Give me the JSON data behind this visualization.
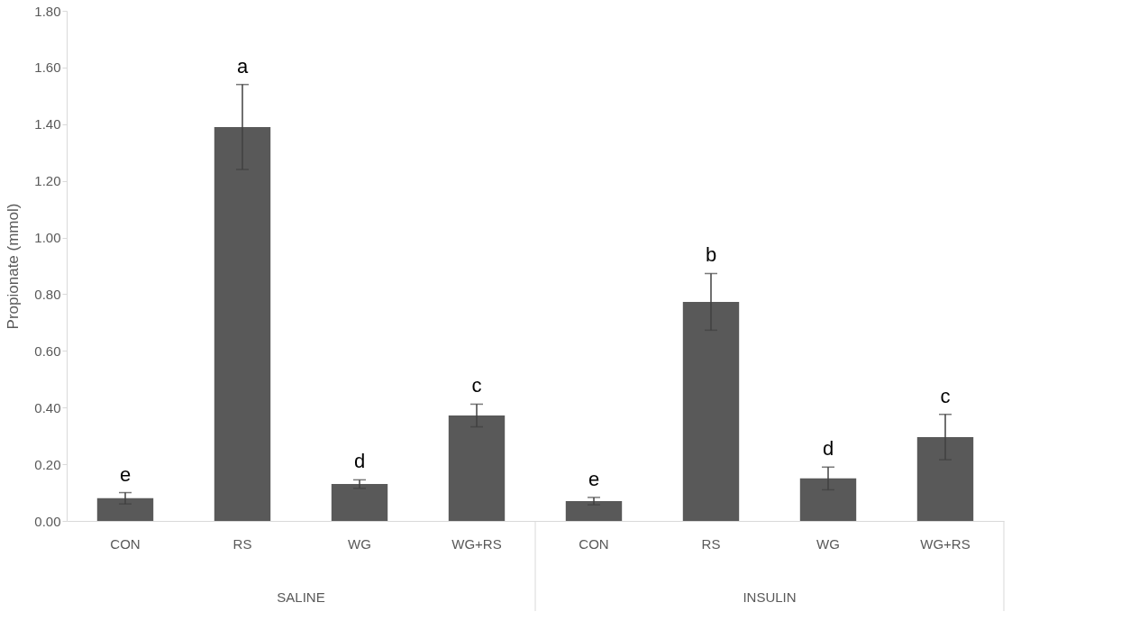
{
  "chart_data": {
    "type": "bar",
    "ylabel": "Propionate (mmol)",
    "categories": [
      "CON",
      "RS",
      "WG",
      "WG+RS",
      "CON",
      "RS",
      "WG",
      "WG+RS"
    ],
    "values": [
      0.08,
      1.39,
      0.13,
      0.372,
      0.07,
      0.773,
      0.15,
      0.296
    ],
    "errors": [
      0.02,
      0.15,
      0.015,
      0.04,
      0.013,
      0.1,
      0.04,
      0.08
    ],
    "value_labels": [
      "e",
      "a",
      "d",
      "c",
      "e",
      "b",
      "d",
      "c"
    ],
    "color": "#595959",
    "ylim": [
      0,
      1.8
    ],
    "yticks": [
      {
        "value": 0,
        "label": "0.00"
      },
      {
        "value": 0.2,
        "label": "0.20"
      },
      {
        "value": 0.4,
        "label": "0.40"
      },
      {
        "value": 0.6,
        "label": "0.60"
      },
      {
        "value": 0.8,
        "label": "0.80"
      },
      {
        "value": 1.0,
        "label": "1.00"
      },
      {
        "value": 1.2,
        "label": "1.20"
      },
      {
        "value": 1.4,
        "label": "1.40"
      },
      {
        "value": 1.6,
        "label": "1.60"
      },
      {
        "value": 1.8,
        "label": "1.80"
      }
    ],
    "annotations": [
      "SALINE",
      "INSULIN"
    ],
    "grid": false
  }
}
